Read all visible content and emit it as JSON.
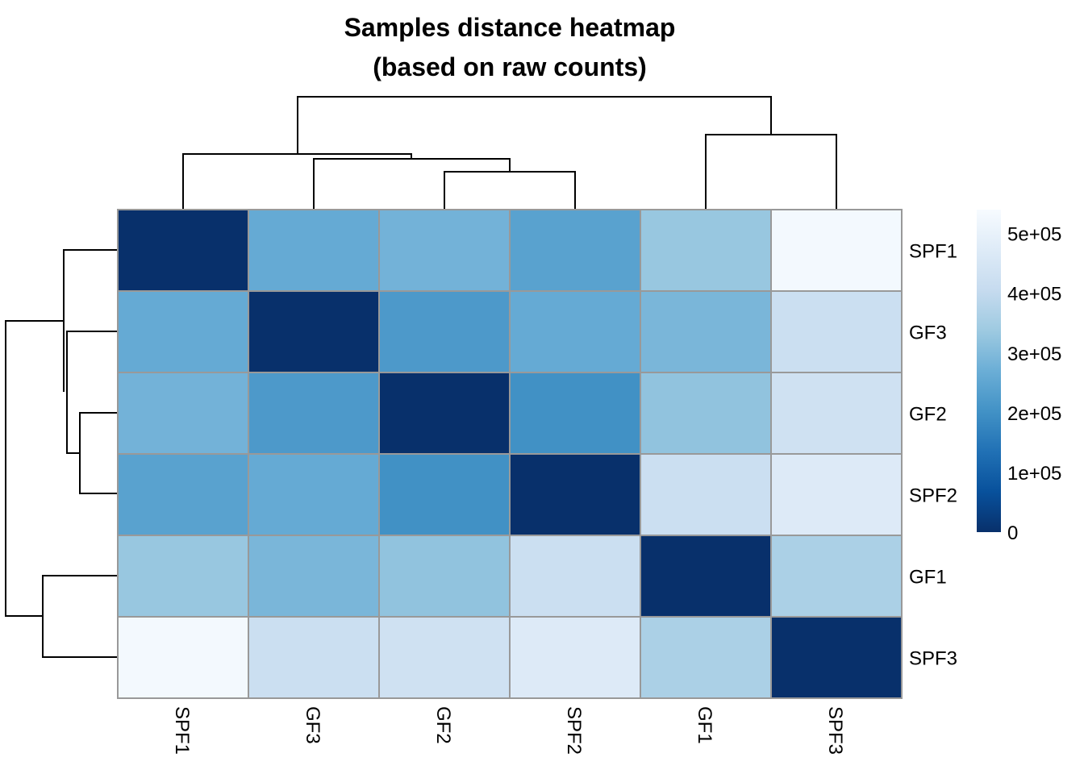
{
  "chart_data": {
    "type": "heatmap",
    "title": "Samples distance heatmap",
    "subtitle": "(based on raw counts)",
    "row_labels": [
      "SPF1",
      "GF3",
      "GF2",
      "SPF2",
      "GF1",
      "SPF3"
    ],
    "col_labels": [
      "SPF1",
      "GF3",
      "GF2",
      "SPF2",
      "GF1",
      "SPF3"
    ],
    "values": [
      [
        0,
        260000,
        280000,
        240000,
        330000,
        530000
      ],
      [
        260000,
        0,
        220000,
        260000,
        290000,
        420000
      ],
      [
        280000,
        220000,
        0,
        200000,
        320000,
        430000
      ],
      [
        240000,
        260000,
        200000,
        0,
        420000,
        470000
      ],
      [
        330000,
        290000,
        320000,
        420000,
        0,
        360000
      ],
      [
        530000,
        420000,
        430000,
        470000,
        360000,
        0
      ]
    ],
    "colorbar": {
      "ticks": [
        "0",
        "1e+05",
        "2e+05",
        "3e+05",
        "4e+05",
        "5e+05"
      ],
      "tick_values": [
        0,
        100000,
        200000,
        300000,
        400000,
        500000
      ],
      "range": [
        0,
        540000
      ],
      "colors": [
        "#08306b",
        "#08519c",
        "#2171b5",
        "#4292c6",
        "#6baed6",
        "#9ecae1",
        "#c6dbef",
        "#deebf7",
        "#f7fbff"
      ]
    },
    "col_dendrogram": [
      {
        "children": [
          "SPF1",
          "GF3|GF2|SPF2"
        ],
        "height": 0.6
      },
      {
        "children": [
          "GF3",
          "GF2|SPF2"
        ],
        "height": 0.42
      },
      {
        "children": [
          "GF2",
          "SPF2"
        ],
        "height": 0.25
      },
      {
        "children": [
          "GF1",
          "SPF3"
        ],
        "height": 0.75
      },
      {
        "children": [
          "SPF1|GF3|GF2|SPF2",
          "GF1|SPF3"
        ],
        "height": 1.0
      }
    ],
    "cell_border_color": "#999999"
  }
}
